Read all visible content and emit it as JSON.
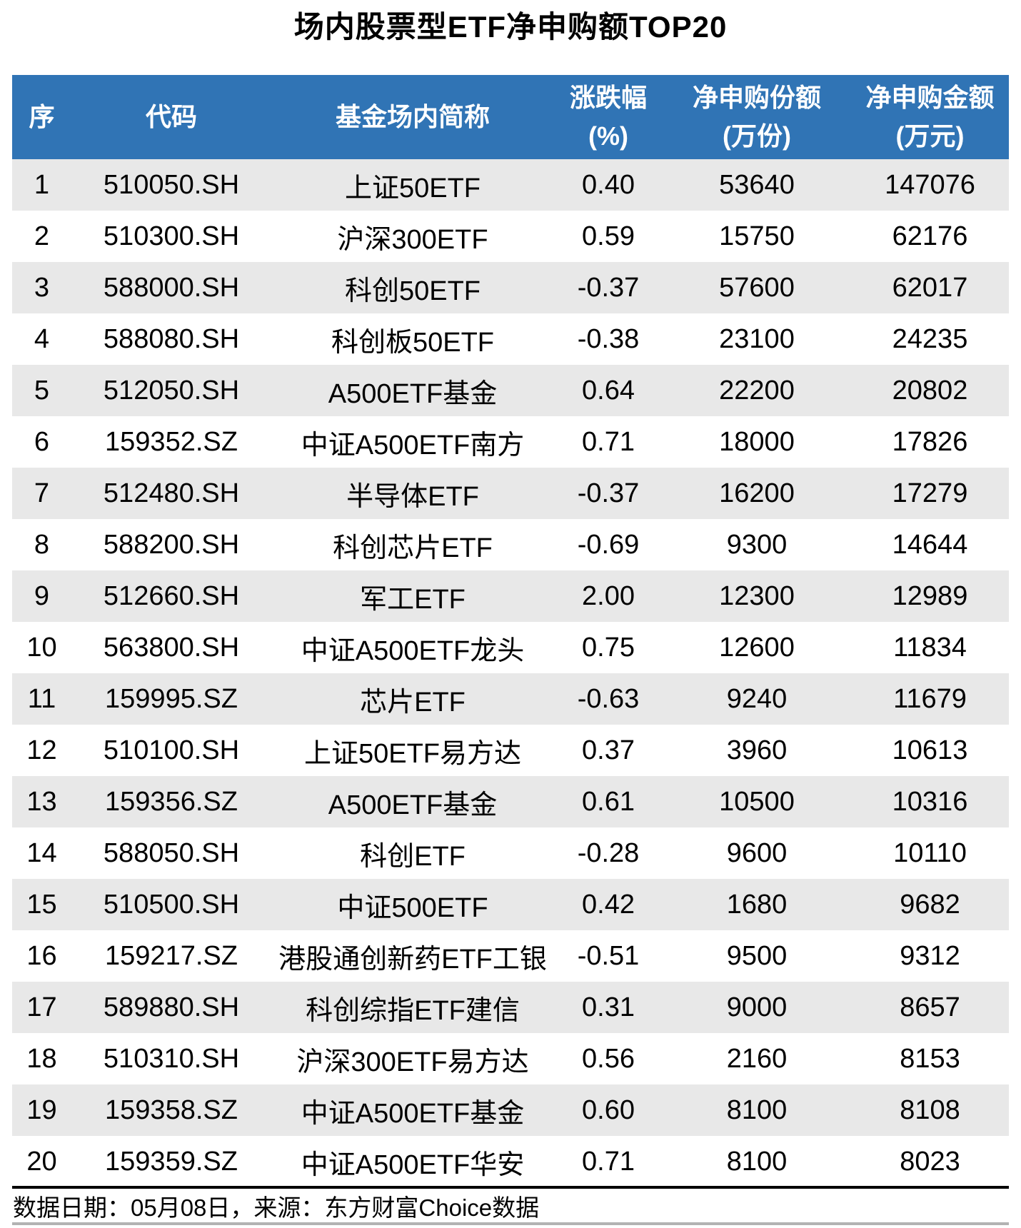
{
  "title": "场内股票型ETF净申购额TOP20",
  "header_columns": [
    {
      "line1": "序",
      "line2": ""
    },
    {
      "line1": "代码",
      "line2": ""
    },
    {
      "line1": "基金场内简称",
      "line2": ""
    },
    {
      "line1": "涨跌幅",
      "line2": "(%)"
    },
    {
      "line1": "净申购份额",
      "line2": "(万份)"
    },
    {
      "line1": "净申购金额",
      "line2": "(万元)"
    }
  ],
  "footer": "数据日期：05月08日，来源：东方财富Choice数据",
  "colors": {
    "header_bg": "#3074B5",
    "header_text": "#FFFFFF",
    "row_alt_bg": "#E8E8E8",
    "divider": "#000000",
    "bottom_line": "#B3B3B3"
  },
  "chart_data": {
    "type": "table",
    "title": "场内股票型ETF净申购额TOP20",
    "columns": [
      "序",
      "代码",
      "基金场内简称",
      "涨跌幅(%)",
      "净申购份额(万份)",
      "净申购金额(万元)"
    ],
    "rows": [
      [
        "1",
        "510050.SH",
        "上证50ETF",
        "0.40",
        "53640",
        "147076"
      ],
      [
        "2",
        "510300.SH",
        "沪深300ETF",
        "0.59",
        "15750",
        "62176"
      ],
      [
        "3",
        "588000.SH",
        "科创50ETF",
        "-0.37",
        "57600",
        "62017"
      ],
      [
        "4",
        "588080.SH",
        "科创板50ETF",
        "-0.38",
        "23100",
        "24235"
      ],
      [
        "5",
        "512050.SH",
        "A500ETF基金",
        "0.64",
        "22200",
        "20802"
      ],
      [
        "6",
        "159352.SZ",
        "中证A500ETF南方",
        "0.71",
        "18000",
        "17826"
      ],
      [
        "7",
        "512480.SH",
        "半导体ETF",
        "-0.37",
        "16200",
        "17279"
      ],
      [
        "8",
        "588200.SH",
        "科创芯片ETF",
        "-0.69",
        "9300",
        "14644"
      ],
      [
        "9",
        "512660.SH",
        "军工ETF",
        "2.00",
        "12300",
        "12989"
      ],
      [
        "10",
        "563800.SH",
        "中证A500ETF龙头",
        "0.75",
        "12600",
        "11834"
      ],
      [
        "11",
        "159995.SZ",
        "芯片ETF",
        "-0.63",
        "9240",
        "11679"
      ],
      [
        "12",
        "510100.SH",
        "上证50ETF易方达",
        "0.37",
        "3960",
        "10613"
      ],
      [
        "13",
        "159356.SZ",
        "A500ETF基金",
        "0.61",
        "10500",
        "10316"
      ],
      [
        "14",
        "588050.SH",
        "科创ETF",
        "-0.28",
        "9600",
        "10110"
      ],
      [
        "15",
        "510500.SH",
        "中证500ETF",
        "0.42",
        "1680",
        "9682"
      ],
      [
        "16",
        "159217.SZ",
        "港股通创新药ETF工银",
        "-0.51",
        "9500",
        "9312"
      ],
      [
        "17",
        "589880.SH",
        "科创综指ETF建信",
        "0.31",
        "9000",
        "8657"
      ],
      [
        "18",
        "510310.SH",
        "沪深300ETF易方达",
        "0.56",
        "2160",
        "8153"
      ],
      [
        "19",
        "159358.SZ",
        "中证A500ETF基金",
        "0.60",
        "8100",
        "8108"
      ],
      [
        "20",
        "159359.SZ",
        "中证A500ETF华安",
        "0.71",
        "8100",
        "8023"
      ]
    ]
  }
}
